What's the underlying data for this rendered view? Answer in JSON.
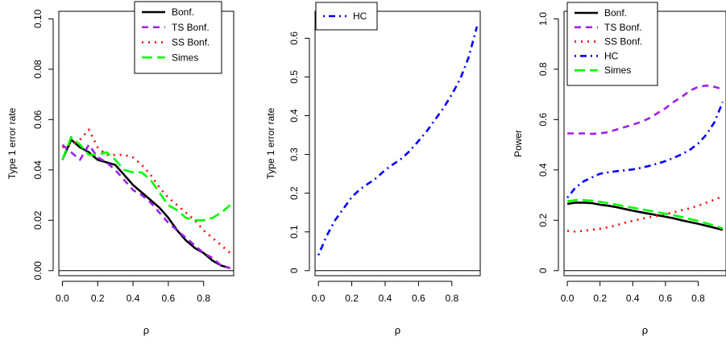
{
  "chart_data": [
    {
      "type": "line",
      "xlabel": "ρ",
      "ylabel": "Type 1 error rate",
      "xlim": [
        0,
        0.95
      ],
      "ylim": [
        0,
        0.1
      ],
      "xticks": [
        "0.0",
        "0.2",
        "0.4",
        "0.6",
        "0.8"
      ],
      "xtick_values": [
        0,
        0.2,
        0.4,
        0.6,
        0.8
      ],
      "yticks": [
        "0.00",
        "0.02",
        "0.04",
        "0.06",
        "0.08",
        "0.10"
      ],
      "ytick_values": [
        0,
        0.02,
        0.04,
        0.06,
        0.08,
        0.1
      ],
      "hline": 0,
      "legend_position": "top-right",
      "series": [
        {
          "name": "Bonf.",
          "color": "#000000",
          "dash": "solid",
          "x": [
            0,
            0.05,
            0.1,
            0.15,
            0.2,
            0.25,
            0.3,
            0.35,
            0.4,
            0.45,
            0.5,
            0.55,
            0.6,
            0.65,
            0.7,
            0.75,
            0.8,
            0.85,
            0.9,
            0.95
          ],
          "y": [
            0.044,
            0.052,
            0.049,
            0.047,
            0.044,
            0.043,
            0.042,
            0.038,
            0.034,
            0.031,
            0.028,
            0.025,
            0.021,
            0.016,
            0.012,
            0.009,
            0.007,
            0.004,
            0.002,
            0.001
          ]
        },
        {
          "name": "TS Bonf.",
          "color": "#a020f0",
          "dash": "dashed",
          "x": [
            0,
            0.05,
            0.1,
            0.15,
            0.2,
            0.25,
            0.3,
            0.35,
            0.4,
            0.45,
            0.5,
            0.55,
            0.6,
            0.65,
            0.7,
            0.75,
            0.8,
            0.85,
            0.9,
            0.95
          ],
          "y": [
            0.05,
            0.047,
            0.044,
            0.05,
            0.045,
            0.043,
            0.04,
            0.036,
            0.032,
            0.03,
            0.027,
            0.023,
            0.019,
            0.016,
            0.013,
            0.01,
            0.007,
            0.005,
            0.002,
            0.001
          ]
        },
        {
          "name": "SS Bonf.",
          "color": "#ff0000",
          "dash": "dotted",
          "x": [
            0,
            0.05,
            0.1,
            0.15,
            0.2,
            0.25,
            0.3,
            0.35,
            0.4,
            0.45,
            0.5,
            0.55,
            0.6,
            0.65,
            0.7,
            0.75,
            0.8,
            0.85,
            0.9,
            0.95
          ],
          "y": [
            0.049,
            0.05,
            0.052,
            0.056,
            0.049,
            0.046,
            0.046,
            0.046,
            0.045,
            0.042,
            0.038,
            0.033,
            0.029,
            0.026,
            0.023,
            0.02,
            0.016,
            0.013,
            0.01,
            0.007
          ]
        },
        {
          "name": "Simes",
          "color": "#00ff00",
          "dash": "longdash",
          "x": [
            0,
            0.05,
            0.1,
            0.15,
            0.2,
            0.25,
            0.3,
            0.35,
            0.4,
            0.45,
            0.5,
            0.55,
            0.6,
            0.65,
            0.7,
            0.75,
            0.8,
            0.85,
            0.9,
            0.95
          ],
          "y": [
            0.044,
            0.053,
            0.05,
            0.046,
            0.046,
            0.047,
            0.044,
            0.04,
            0.039,
            0.039,
            0.036,
            0.031,
            0.026,
            0.024,
            0.021,
            0.02,
            0.02,
            0.021,
            0.023,
            0.026
          ]
        }
      ]
    },
    {
      "type": "line",
      "xlabel": "ρ",
      "ylabel": "Type 1 error rate",
      "xlim": [
        0,
        0.95
      ],
      "ylim": [
        0,
        0.65
      ],
      "xticks": [
        "0.0",
        "0.2",
        "0.4",
        "0.6",
        "0.8"
      ],
      "xtick_values": [
        0,
        0.2,
        0.4,
        0.6,
        0.8
      ],
      "yticks": [
        "0",
        "0.1",
        "0.2",
        "0.3",
        "0.4",
        "0.5",
        "0.6"
      ],
      "ytick_values": [
        0,
        0.1,
        0.2,
        0.3,
        0.4,
        0.5,
        0.6
      ],
      "hline": 0,
      "legend_position": "top-left",
      "series": [
        {
          "name": "HC",
          "color": "#0000ff",
          "dash": "dotdash",
          "x": [
            0,
            0.05,
            0.1,
            0.15,
            0.2,
            0.25,
            0.3,
            0.35,
            0.4,
            0.45,
            0.5,
            0.55,
            0.6,
            0.65,
            0.7,
            0.75,
            0.8,
            0.85,
            0.9,
            0.95
          ],
          "y": [
            0.04,
            0.09,
            0.13,
            0.16,
            0.19,
            0.21,
            0.225,
            0.24,
            0.26,
            0.275,
            0.29,
            0.31,
            0.335,
            0.36,
            0.39,
            0.42,
            0.455,
            0.495,
            0.55,
            0.63
          ]
        }
      ]
    },
    {
      "type": "line",
      "xlabel": "ρ",
      "ylabel": "Power",
      "xlim": [
        0,
        0.95
      ],
      "ylim": [
        0,
        1.0
      ],
      "xticks": [
        "0.0",
        "0.2",
        "0.4",
        "0.6",
        "0.8"
      ],
      "xtick_values": [
        0,
        0.2,
        0.4,
        0.6,
        0.8
      ],
      "yticks": [
        "0",
        "0.2",
        "0.4",
        "0.6",
        "0.8",
        "1.0"
      ],
      "ytick_values": [
        0,
        0.2,
        0.4,
        0.6,
        0.8,
        1.0
      ],
      "hline": 0,
      "legend_position": "top-left",
      "series": [
        {
          "name": "Bonf.",
          "color": "#000000",
          "dash": "solid",
          "x": [
            0,
            0.05,
            0.1,
            0.15,
            0.2,
            0.25,
            0.3,
            0.35,
            0.4,
            0.45,
            0.5,
            0.55,
            0.6,
            0.65,
            0.7,
            0.75,
            0.8,
            0.85,
            0.9,
            0.95
          ],
          "y": [
            0.265,
            0.27,
            0.27,
            0.268,
            0.262,
            0.258,
            0.252,
            0.245,
            0.238,
            0.232,
            0.226,
            0.22,
            0.214,
            0.208,
            0.2,
            0.193,
            0.186,
            0.178,
            0.17,
            0.162
          ]
        },
        {
          "name": "TS Bonf.",
          "color": "#a020f0",
          "dash": "dashed",
          "x": [
            0,
            0.05,
            0.1,
            0.15,
            0.2,
            0.25,
            0.3,
            0.35,
            0.4,
            0.45,
            0.5,
            0.55,
            0.6,
            0.65,
            0.7,
            0.75,
            0.8,
            0.85,
            0.9,
            0.95
          ],
          "y": [
            0.545,
            0.545,
            0.545,
            0.543,
            0.545,
            0.55,
            0.56,
            0.57,
            0.58,
            0.59,
            0.605,
            0.625,
            0.645,
            0.67,
            0.69,
            0.715,
            0.73,
            0.735,
            0.73,
            0.72
          ]
        },
        {
          "name": "SS Bonf.",
          "color": "#ff0000",
          "dash": "dotted",
          "x": [
            0,
            0.05,
            0.1,
            0.15,
            0.2,
            0.25,
            0.3,
            0.35,
            0.4,
            0.45,
            0.5,
            0.55,
            0.6,
            0.65,
            0.7,
            0.75,
            0.8,
            0.85,
            0.9,
            0.95
          ],
          "y": [
            0.158,
            0.155,
            0.158,
            0.162,
            0.166,
            0.172,
            0.18,
            0.19,
            0.198,
            0.205,
            0.212,
            0.218,
            0.225,
            0.232,
            0.24,
            0.248,
            0.258,
            0.27,
            0.282,
            0.295
          ]
        },
        {
          "name": "HC",
          "color": "#0000ff",
          "dash": "dotdash",
          "x": [
            0,
            0.05,
            0.1,
            0.15,
            0.2,
            0.25,
            0.3,
            0.35,
            0.4,
            0.45,
            0.5,
            0.55,
            0.6,
            0.65,
            0.7,
            0.75,
            0.8,
            0.85,
            0.9,
            0.95
          ],
          "y": [
            0.29,
            0.33,
            0.355,
            0.37,
            0.385,
            0.39,
            0.395,
            0.398,
            0.402,
            0.408,
            0.416,
            0.425,
            0.435,
            0.448,
            0.462,
            0.48,
            0.505,
            0.54,
            0.59,
            0.67
          ]
        },
        {
          "name": "Simes",
          "color": "#00ff00",
          "dash": "longdash",
          "x": [
            0,
            0.05,
            0.1,
            0.15,
            0.2,
            0.25,
            0.3,
            0.35,
            0.4,
            0.45,
            0.5,
            0.55,
            0.6,
            0.65,
            0.7,
            0.75,
            0.8,
            0.85,
            0.9,
            0.95
          ],
          "y": [
            0.275,
            0.28,
            0.28,
            0.278,
            0.273,
            0.268,
            0.262,
            0.256,
            0.25,
            0.244,
            0.238,
            0.232,
            0.226,
            0.22,
            0.213,
            0.205,
            0.197,
            0.188,
            0.178,
            0.168
          ]
        }
      ]
    }
  ]
}
